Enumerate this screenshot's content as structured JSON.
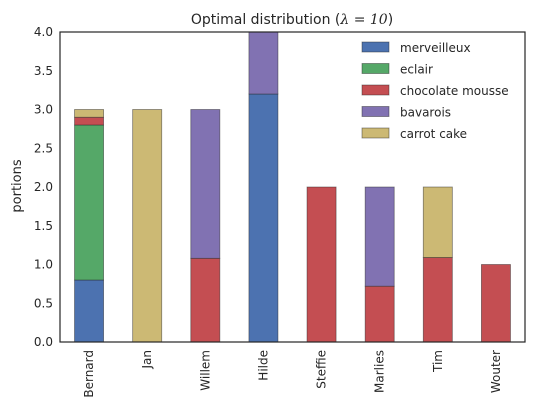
{
  "chart_data": {
    "type": "bar",
    "stacked": true,
    "title_text": "Optimal distribution (",
    "title_math": "λ = 10",
    "title_end": ")",
    "xlabel": "",
    "ylabel": "portions",
    "ylim": [
      0,
      4.0
    ],
    "yticks": [
      "0.0",
      "0.5",
      "1.0",
      "1.5",
      "2.0",
      "2.5",
      "3.0",
      "3.5",
      "4.0"
    ],
    "grid": false,
    "legend_position": "top-right",
    "categories": [
      "Bernard",
      "Jan",
      "Willem",
      "Hilde",
      "Steffie",
      "Marlies",
      "Tim",
      "Wouter"
    ],
    "series": [
      {
        "name": "merveilleux",
        "color": "#4c72b0",
        "values": [
          0.8,
          0,
          0,
          3.2,
          0,
          0,
          0,
          0
        ]
      },
      {
        "name": "eclair",
        "color": "#55a868",
        "values": [
          2.0,
          0,
          0,
          0,
          0,
          0,
          0,
          0
        ]
      },
      {
        "name": "chocolate mousse",
        "color": "#c44e52",
        "values": [
          0.1,
          0,
          1.08,
          0,
          2.0,
          0.72,
          1.09,
          1.0
        ]
      },
      {
        "name": "bavarois",
        "color": "#8172b2",
        "values": [
          0,
          0,
          1.92,
          0.8,
          0,
          1.28,
          0,
          0
        ]
      },
      {
        "name": "carrot cake",
        "color": "#ccb974",
        "values": [
          0.1,
          3.0,
          0,
          0,
          0,
          0,
          0.91,
          0
        ]
      }
    ]
  }
}
